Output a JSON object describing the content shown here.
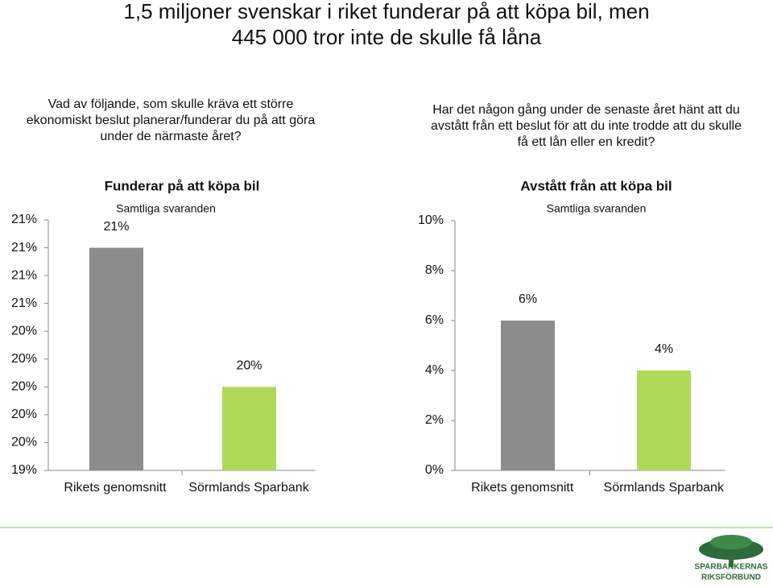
{
  "title": "1,5 miljoner svenskar i riket funderar på att köpa bil, men 445 000 tror inte de skulle få låna",
  "questions": [
    "Vad av följande, som skulle kräva ett större ekonomiskt beslut planerar/funderar du på att göra under de närmaste året?",
    "Har det någon gång under de senaste året hänt att du avstått från ett beslut för att du inte trodde att du skulle få ett lån eller en kredit?"
  ],
  "logo": [
    "SPARBANKERNAS",
    "RIKSFÖRBUND"
  ],
  "chart_data": [
    {
      "type": "bar",
      "title": "Funderar på att köpa bil",
      "subtitle": "Samtliga svaranden",
      "categories": [
        "Rikets genomsnitt",
        "Sörmlands Sparbank"
      ],
      "values": [
        21.0,
        20.0
      ],
      "value_labels": [
        "21%",
        "20%"
      ],
      "colors": [
        "#8c8c8c",
        "#b0d95a"
      ],
      "ylim": [
        19.4,
        21.2
      ],
      "yticks": [
        {
          "value": 19.4,
          "label": "19%"
        },
        {
          "value": 19.6,
          "label": "20%"
        },
        {
          "value": 19.8,
          "label": "20%"
        },
        {
          "value": 20.0,
          "label": "20%"
        },
        {
          "value": 20.2,
          "label": "20%"
        },
        {
          "value": 20.4,
          "label": "20%"
        },
        {
          "value": 20.6,
          "label": "21%"
        },
        {
          "value": 20.8,
          "label": "21%"
        },
        {
          "value": 21.0,
          "label": "21%"
        },
        {
          "value": 21.2,
          "label": "21%"
        }
      ]
    },
    {
      "type": "bar",
      "title": "Avstått från att köpa bil",
      "subtitle": "Samtliga svaranden",
      "categories": [
        "Rikets genomsnitt",
        "Sörmlands Sparbank"
      ],
      "values": [
        6,
        4
      ],
      "value_labels": [
        "6%",
        "4%"
      ],
      "colors": [
        "#8c8c8c",
        "#b0d95a"
      ],
      "ylim": [
        0,
        10
      ],
      "yticks": [
        {
          "value": 0,
          "label": "0%"
        },
        {
          "value": 2,
          "label": "2%"
        },
        {
          "value": 4,
          "label": "4%"
        },
        {
          "value": 6,
          "label": "6%"
        },
        {
          "value": 8,
          "label": "8%"
        },
        {
          "value": 10,
          "label": "10%"
        }
      ]
    }
  ]
}
